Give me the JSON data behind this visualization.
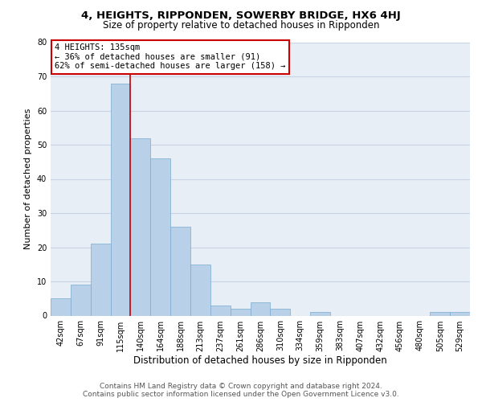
{
  "title": "4, HEIGHTS, RIPPONDEN, SOWERBY BRIDGE, HX6 4HJ",
  "subtitle": "Size of property relative to detached houses in Ripponden",
  "xlabel": "Distribution of detached houses by size in Ripponden",
  "ylabel": "Number of detached properties",
  "categories": [
    "42sqm",
    "67sqm",
    "91sqm",
    "115sqm",
    "140sqm",
    "164sqm",
    "188sqm",
    "213sqm",
    "237sqm",
    "261sqm",
    "286sqm",
    "310sqm",
    "334sqm",
    "359sqm",
    "383sqm",
    "407sqm",
    "432sqm",
    "456sqm",
    "480sqm",
    "505sqm",
    "529sqm"
  ],
  "bar_heights": [
    5,
    9,
    21,
    68,
    52,
    46,
    26,
    15,
    3,
    2,
    4,
    2,
    0,
    1,
    0,
    0,
    0,
    0,
    0,
    1,
    1
  ],
  "bar_color": "#b8d0e8",
  "bar_edge_color": "#7aabcf",
  "property_line_x": 3.5,
  "annotation_line1": "4 HEIGHTS: 135sqm",
  "annotation_line2": "← 36% of detached houses are smaller (91)",
  "annotation_line3": "62% of semi-detached houses are larger (158) →",
  "annotation_box_color": "#ffffff",
  "annotation_box_edge": "#cc0000",
  "line_color": "#cc0000",
  "ylim": [
    0,
    80
  ],
  "yticks": [
    0,
    10,
    20,
    30,
    40,
    50,
    60,
    70,
    80
  ],
  "grid_color": "#c8d4e4",
  "background_color": "#e8eef6",
  "footer_line1": "Contains HM Land Registry data © Crown copyright and database right 2024.",
  "footer_line2": "Contains public sector information licensed under the Open Government Licence v3.0.",
  "title_fontsize": 9.5,
  "subtitle_fontsize": 8.5,
  "xlabel_fontsize": 8.5,
  "ylabel_fontsize": 8,
  "annotation_fontsize": 7.5,
  "tick_fontsize": 7,
  "footer_fontsize": 6.5
}
